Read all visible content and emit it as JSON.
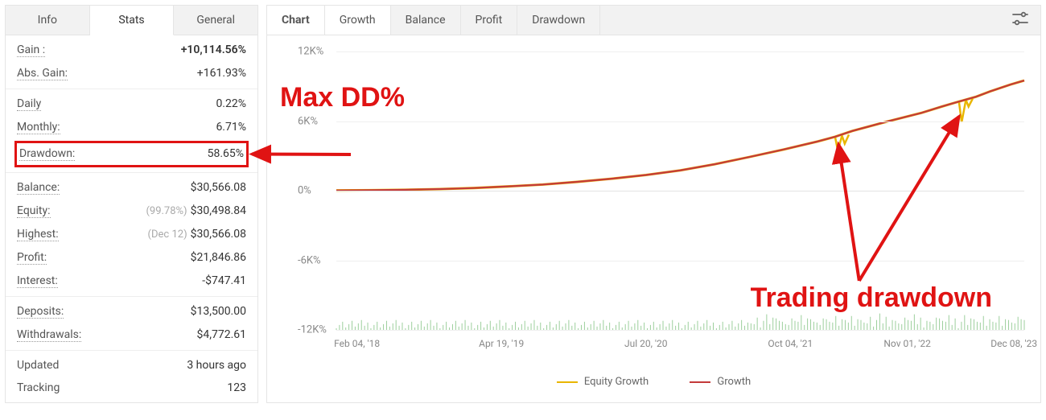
{
  "colors": {
    "positive": "#18a54a",
    "annotation": "#e01313",
    "border": "#e5e5e5",
    "grid": "#efefef",
    "equity_line": "#e9b600",
    "growth_line": "#c43a3a",
    "volume_bar": "#9ccf9c"
  },
  "left_tabs": [
    "Info",
    "Stats",
    "General"
  ],
  "left_tabs_active": 1,
  "stats": {
    "gain_label": "Gain :",
    "gain_value": "+10,114.56%",
    "absgain_label": "Abs. Gain:",
    "absgain_value": "+161.93%",
    "daily_label": "Daily",
    "daily_value": "0.22%",
    "monthly_label": "Monthly:",
    "monthly_value": "6.71%",
    "dd_label": "Drawdown:",
    "dd_value": "58.65%",
    "balance_label": "Balance:",
    "balance_value": "$30,566.08",
    "equity_label": "Equity:",
    "equity_pct": "(99.78%)",
    "equity_value": "$30,498.84",
    "highest_label": "Highest:",
    "highest_date": "(Dec 12)",
    "highest_value": "$30,566.08",
    "profit_label": "Profit:",
    "profit_value": "$21,846.86",
    "interest_label": "Interest:",
    "interest_value": "-$747.41",
    "deposits_label": "Deposits:",
    "deposits_value": "$13,500.00",
    "withdrawals_label": "Withdrawals:",
    "withdrawals_value": "$4,772.61",
    "updated_label": "Updated",
    "updated_value": "3 hours ago",
    "tracking_label": "Tracking",
    "tracking_value": "123"
  },
  "chart_tabs": [
    "Chart",
    "Growth",
    "Balance",
    "Profit",
    "Drawdown"
  ],
  "chart_tabs_active": 1,
  "chart": {
    "type": "line",
    "ylim": [
      -12000,
      12000
    ],
    "yticks": [
      {
        "v": 12000,
        "label": "12K%"
      },
      {
        "v": 6000,
        "label": "6K%"
      },
      {
        "v": 0,
        "label": "0%"
      },
      {
        "v": -6000,
        "label": "-6K%"
      },
      {
        "v": -12000,
        "label": "-12K%"
      }
    ],
    "xticks": [
      {
        "t": 0.03,
        "label": "Feb 04, '18"
      },
      {
        "t": 0.24,
        "label": "Apr 19, '19"
      },
      {
        "t": 0.45,
        "label": "Jul 20, '20"
      },
      {
        "t": 0.66,
        "label": "Oct 04, '21"
      },
      {
        "t": 0.83,
        "label": "Nov 01, '22"
      },
      {
        "t": 0.985,
        "label": "Dec 08, '23"
      }
    ],
    "growth_series": [
      {
        "t": 0.0,
        "v": 20
      },
      {
        "t": 0.05,
        "v": 40
      },
      {
        "t": 0.1,
        "v": 80
      },
      {
        "t": 0.15,
        "v": 140
      },
      {
        "t": 0.2,
        "v": 230
      },
      {
        "t": 0.25,
        "v": 370
      },
      {
        "t": 0.3,
        "v": 530
      },
      {
        "t": 0.35,
        "v": 760
      },
      {
        "t": 0.4,
        "v": 1030
      },
      {
        "t": 0.45,
        "v": 1350
      },
      {
        "t": 0.5,
        "v": 1750
      },
      {
        "t": 0.55,
        "v": 2280
      },
      {
        "t": 0.6,
        "v": 2900
      },
      {
        "t": 0.65,
        "v": 3550
      },
      {
        "t": 0.7,
        "v": 4250
      },
      {
        "t": 0.725,
        "v": 4650
      },
      {
        "t": 0.75,
        "v": 5150
      },
      {
        "t": 0.8,
        "v": 5950
      },
      {
        "t": 0.85,
        "v": 6700
      },
      {
        "t": 0.88,
        "v": 7250
      },
      {
        "t": 0.9,
        "v": 7600
      },
      {
        "t": 0.93,
        "v": 8100
      },
      {
        "t": 0.95,
        "v": 8550
      },
      {
        "t": 0.98,
        "v": 9150
      },
      {
        "t": 1.0,
        "v": 9500
      }
    ],
    "equity_dips": [
      {
        "t": 0.725,
        "from": 4650,
        "to": 3450
      },
      {
        "t": 0.735,
        "from": 4750,
        "to": 4050
      },
      {
        "t": 0.905,
        "from": 7700,
        "to": 5900
      },
      {
        "t": 0.915,
        "from": 7850,
        "to": 7250
      }
    ],
    "legend": [
      {
        "label": "Equity Growth",
        "color": "#e9b600"
      },
      {
        "label": "Growth",
        "color": "#c43a3a"
      }
    ]
  },
  "annotations": {
    "max_dd": "Max DD%",
    "trading_dd": "Trading drawdown"
  }
}
